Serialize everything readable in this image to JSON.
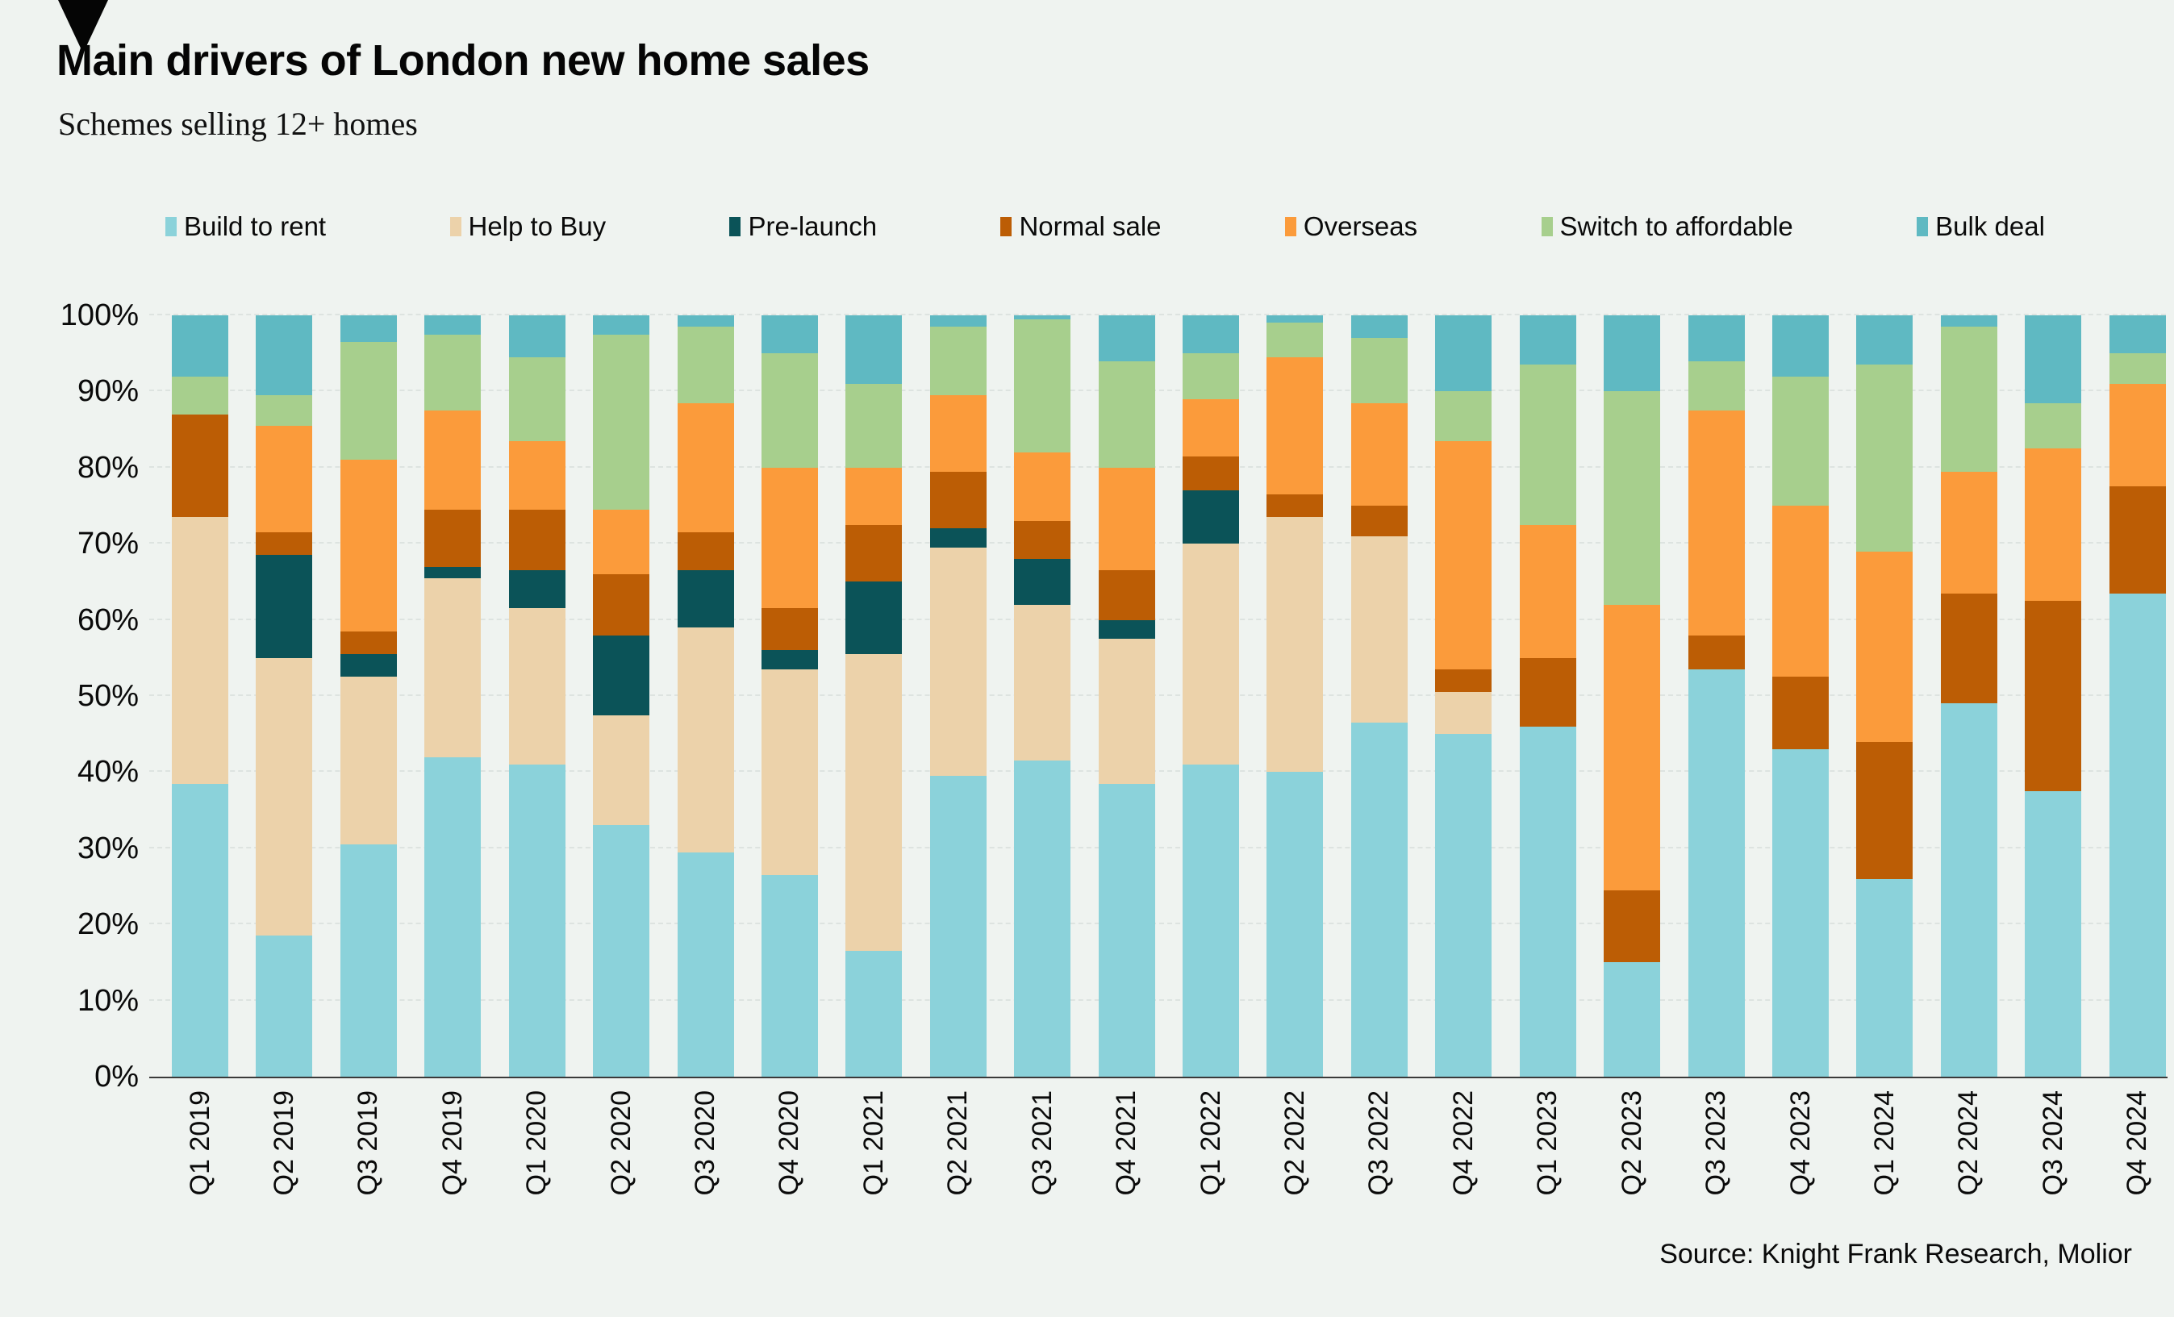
{
  "header": {
    "title": "Main drivers of London new home sales",
    "subtitle": "Schemes selling 12+ homes"
  },
  "footer": {
    "source": "Source: Knight Frank Research, Molior"
  },
  "icons": {
    "brand_arrow": "black-down-triangle"
  },
  "colors": {
    "background": "#EFF3F0",
    "gridline": "#DDE3E0",
    "axis": "#3A3A3A",
    "text": "#0A0A0A"
  },
  "chart_data": {
    "type": "bar",
    "stacked": true,
    "percent_stacked": true,
    "title": "Main drivers of London new home sales",
    "subtitle": "Schemes selling 12+ homes",
    "legend_position": "top",
    "grid": true,
    "ylim": [
      0,
      100
    ],
    "ytick_step": 10,
    "ytick_labels": [
      "0%",
      "10%",
      "20%",
      "30%",
      "40%",
      "50%",
      "60%",
      "70%",
      "80%",
      "90%",
      "100%"
    ],
    "categories": [
      "Q1 2019",
      "Q2 2019",
      "Q3 2019",
      "Q4 2019",
      "Q1 2020",
      "Q2 2020",
      "Q3 2020",
      "Q4 2020",
      "Q1 2021",
      "Q2 2021",
      "Q3 2021",
      "Q4 2021",
      "Q1 2022",
      "Q2 2022",
      "Q3 2022",
      "Q4 2022",
      "Q1 2023",
      "Q2 2023",
      "Q3 2023",
      "Q4 2023",
      "Q1 2024",
      "Q2 2024",
      "Q3 2024",
      "Q4 2024"
    ],
    "series": [
      {
        "name": "Build to rent",
        "color": "#8BD2DA",
        "values": [
          38.5,
          18.5,
          30.5,
          42,
          41,
          33,
          29.5,
          26.5,
          16.5,
          39.5,
          41.5,
          38.5,
          41,
          40,
          46.5,
          45,
          46,
          15,
          53.5,
          43,
          26,
          49,
          37.5,
          63.5
        ]
      },
      {
        "name": "Help to Buy",
        "color": "#ECD2AA",
        "values": [
          35,
          36.5,
          22,
          23.5,
          20.5,
          14.5,
          29.5,
          27,
          39,
          30,
          20.5,
          19,
          29,
          33.5,
          24.5,
          5.5,
          0,
          0,
          0,
          0,
          0,
          0,
          0,
          0
        ]
      },
      {
        "name": "Pre-launch",
        "color": "#0B5358",
        "values": [
          0,
          13.5,
          3,
          1.5,
          5,
          10.5,
          7.5,
          2.5,
          9.5,
          2.5,
          6,
          2.5,
          7,
          0,
          0,
          0,
          0,
          0,
          0,
          0,
          0,
          0,
          0,
          0
        ]
      },
      {
        "name": "Normal sale",
        "color": "#BC5D05",
        "values": [
          13.5,
          3,
          3,
          7.5,
          8,
          8,
          5,
          5.5,
          7.5,
          7.5,
          5,
          6.5,
          4.5,
          3,
          4,
          3,
          9,
          9.5,
          4.5,
          9.5,
          18,
          14.5,
          25,
          14
        ]
      },
      {
        "name": "Overseas",
        "color": "#FB9B3B",
        "values": [
          0,
          14,
          22.5,
          13,
          9,
          8.5,
          17,
          18.5,
          7.5,
          10,
          9,
          13.5,
          7.5,
          18,
          13.5,
          30,
          17.5,
          37.5,
          29.5,
          22.5,
          25,
          16,
          20,
          13.5
        ]
      },
      {
        "name": "Switch to affordable",
        "color": "#A7CF8D",
        "values": [
          5,
          4,
          15.5,
          10,
          11,
          23,
          10,
          15,
          11,
          9,
          17.5,
          14,
          6,
          4.5,
          8.5,
          6.5,
          21,
          28,
          6.5,
          17,
          24.5,
          19,
          6,
          4
        ]
      },
      {
        "name": "Bulk deal",
        "color": "#5FB9C2",
        "values": [
          8,
          10.5,
          3.5,
          2.5,
          5.5,
          2.5,
          1.5,
          5,
          9,
          1.5,
          0.5,
          6,
          5,
          1,
          3,
          10,
          6.5,
          10,
          6,
          8,
          6.5,
          1.5,
          11.5,
          5
        ]
      }
    ]
  }
}
